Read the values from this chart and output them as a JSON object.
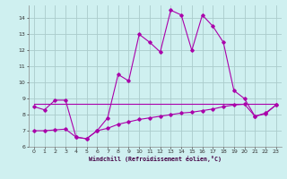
{
  "xlabel": "Windchill (Refroidissement éolien,°C)",
  "xlim": [
    -0.5,
    23.5
  ],
  "ylim": [
    6,
    14.8
  ],
  "yticks": [
    6,
    7,
    8,
    9,
    10,
    11,
    12,
    13,
    14
  ],
  "xticks": [
    0,
    1,
    2,
    3,
    4,
    5,
    6,
    7,
    8,
    9,
    10,
    11,
    12,
    13,
    14,
    15,
    16,
    17,
    18,
    19,
    20,
    21,
    22,
    23
  ],
  "bg_color": "#cff0f0",
  "grid_color": "#aacccc",
  "line_color": "#aa00aa",
  "line1_x": [
    0,
    1,
    2,
    3,
    4,
    5,
    6,
    7,
    8,
    9,
    10,
    11,
    12,
    13,
    14,
    15,
    16,
    17,
    18,
    19,
    20,
    21,
    22,
    23
  ],
  "line1_y": [
    8.5,
    8.3,
    8.9,
    8.9,
    6.6,
    6.5,
    7.0,
    7.8,
    10.5,
    10.1,
    13.0,
    12.5,
    11.9,
    14.5,
    14.2,
    12.0,
    14.2,
    13.5,
    12.5,
    9.5,
    9.0,
    7.9,
    8.1,
    8.6
  ],
  "line2_x": [
    0,
    23
  ],
  "line2_y": [
    8.7,
    8.7
  ],
  "line3_x": [
    0,
    1,
    2,
    3,
    4,
    5,
    6,
    7,
    8,
    9,
    10,
    11,
    12,
    13,
    14,
    15,
    16,
    17,
    18,
    19,
    20,
    21,
    22,
    23
  ],
  "line3_y": [
    7.0,
    7.0,
    7.05,
    7.1,
    6.6,
    6.5,
    7.0,
    7.15,
    7.4,
    7.55,
    7.7,
    7.8,
    7.9,
    8.0,
    8.1,
    8.15,
    8.25,
    8.35,
    8.5,
    8.6,
    8.65,
    7.9,
    8.05,
    8.6
  ]
}
